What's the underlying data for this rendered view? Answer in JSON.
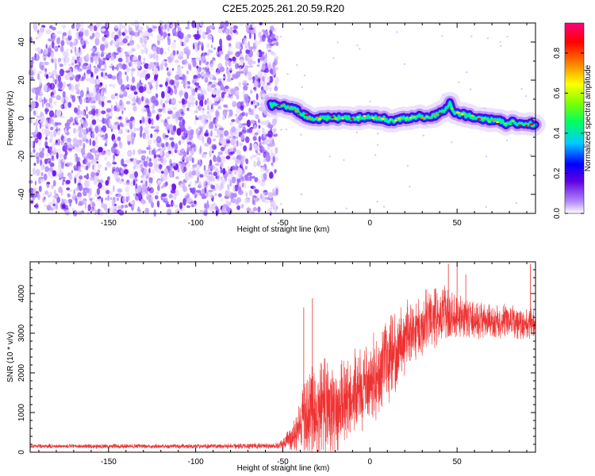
{
  "title": "C2E5.2025.261.20.59.R20",
  "chart_data": [
    {
      "type": "heatmap",
      "xlabel": "Height of straight line (km)",
      "ylabel": "Frequency (Hz)",
      "xlim": [
        -195,
        95
      ],
      "ylim": [
        -50,
        50
      ],
      "xticks": [
        -150,
        -100,
        -50,
        0,
        50
      ],
      "yticks": [
        -40,
        -20,
        0,
        20,
        40
      ],
      "colorbar": {
        "label": "Normalized spectral amplitude",
        "range": [
          0,
          0.95
        ],
        "ticks": [
          0.0,
          0.2,
          0.4,
          0.6,
          0.8
        ],
        "colors": [
          "#ffffff",
          "#a070ff",
          "#0000ff",
          "#00e0ff",
          "#00ff40",
          "#f0ff00",
          "#ff8000",
          "#ff0000",
          "#ff00a0"
        ]
      },
      "noise_region_x": [
        -195,
        -55
      ],
      "ridge": {
        "x": [
          -57,
          -52,
          -47,
          -42,
          -37,
          -32,
          -27,
          -22,
          -17,
          -12,
          -7,
          -2,
          3,
          8,
          13,
          18,
          23,
          28,
          33,
          38,
          43,
          46,
          48,
          53,
          58,
          63,
          68,
          73,
          78,
          83,
          88,
          93
        ],
        "y": [
          7,
          7,
          6,
          4,
          1,
          0,
          0,
          0,
          0,
          0,
          0,
          1,
          0,
          0,
          -2,
          0,
          0,
          1,
          0,
          2,
          4,
          8,
          3,
          2,
          1,
          0,
          -1,
          -1,
          -3,
          -2,
          -4,
          -3
        ]
      }
    },
    {
      "type": "line",
      "xlabel": "Height of straight line (km)",
      "ylabel": "SNR (10 * v/v)",
      "xlim": [
        -195,
        95
      ],
      "ylim": [
        0,
        4800
      ],
      "xticks": [
        -150,
        -100,
        -50,
        0,
        50
      ],
      "yticks": [
        0,
        1000,
        2000,
        3000,
        4000
      ],
      "color": "#ee3333",
      "envelope": {
        "x": [
          -195,
          -100,
          -55,
          -50,
          -45,
          -40,
          -35,
          -30,
          -25,
          -20,
          -15,
          -10,
          -5,
          0,
          5,
          10,
          15,
          20,
          25,
          30,
          35,
          40,
          45,
          50,
          55,
          60,
          65,
          70,
          75,
          80,
          85,
          90,
          95
        ],
        "center": [
          150,
          150,
          160,
          200,
          400,
          700,
          900,
          1000,
          1050,
          1100,
          1200,
          1400,
          1600,
          1800,
          2000,
          2300,
          2600,
          2900,
          3100,
          3200,
          3400,
          3500,
          3450,
          3450,
          3400,
          3300,
          3300,
          3250,
          3250,
          3300,
          3250,
          3200,
          3300
        ],
        "spread": [
          60,
          70,
          90,
          150,
          400,
          800,
          1400,
          1600,
          1500,
          1300,
          1300,
          1200,
          1200,
          1200,
          1200,
          1200,
          1100,
          1000,
          900,
          900,
          900,
          800,
          800,
          700,
          600,
          550,
          550,
          500,
          500,
          500,
          500,
          450,
          450
        ]
      },
      "peaks": [
        {
          "x": -33,
          "y": 3880
        },
        {
          "x": -38,
          "y": 3650
        },
        {
          "x": 45,
          "y": 4750
        },
        {
          "x": 50,
          "y": 4750
        },
        {
          "x": 55,
          "y": 4480
        },
        {
          "x": 92,
          "y": 4750
        }
      ]
    }
  ]
}
